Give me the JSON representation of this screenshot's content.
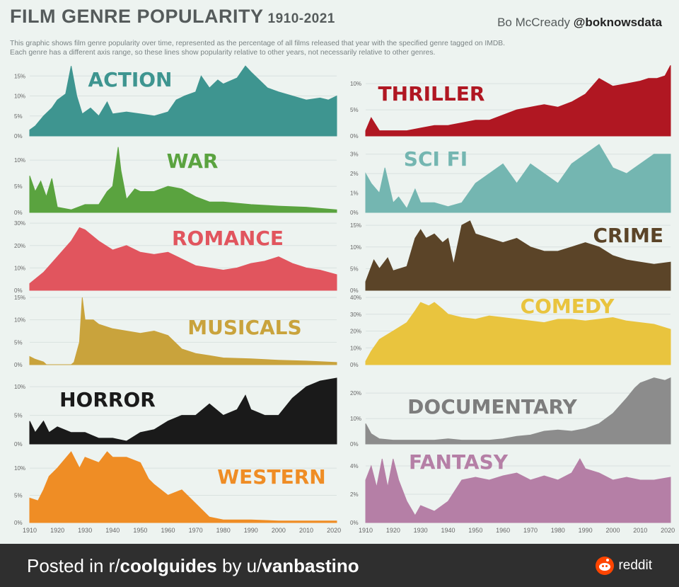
{
  "title": "FILM GENRE POPULARITY",
  "title_years": "1910-2021",
  "author": "Bo McCready",
  "author_handle": "@boknowsdata",
  "subtitle_line1": "This graphic shows film genre popularity over time, represented as the percentage of all films released that year with the specified genre tagged on IMDB.",
  "subtitle_line2": "Each genre has a different axis range, so these lines show popularity relative to other years, not necessarily relative to other genres.",
  "footer": {
    "prefix": "Posted in r/",
    "subreddit": "coolguides",
    "by": " by u/",
    "user": "vanbastino",
    "brand": "reddit"
  },
  "chart_data": [
    {
      "type": "area",
      "title": "ACTION",
      "color": "#3e9590",
      "label_color": "#3e9590",
      "ylim": [
        0,
        17
      ],
      "y_ticks": [
        "0%",
        "5%",
        "10%",
        "15%"
      ],
      "y_tick_values": [
        0,
        5,
        10,
        15
      ],
      "x": [
        1910,
        1912,
        1915,
        1918,
        1920,
        1923,
        1925,
        1927,
        1929,
        1932,
        1935,
        1938,
        1940,
        1945,
        1950,
        1955,
        1960,
        1963,
        1966,
        1970,
        1972,
        1975,
        1978,
        1980,
        1985,
        1988,
        1990,
        1993,
        1996,
        2000,
        2005,
        2010,
        2015,
        2018,
        2021
      ],
      "values": [
        1.5,
        2.5,
        5.0,
        7.0,
        9.0,
        10.5,
        17.5,
        10.0,
        5.5,
        7.0,
        5.0,
        8.5,
        5.5,
        6.0,
        5.5,
        5.0,
        6.0,
        9.0,
        10.0,
        11.0,
        15.0,
        12.0,
        14.0,
        13.0,
        14.5,
        17.5,
        16.0,
        14.0,
        12.0,
        11.0,
        10.0,
        9.0,
        9.5,
        9.0,
        10.0
      ]
    },
    {
      "type": "area",
      "title": "THRILLER",
      "color": "#b01722",
      "label_color": "#b01722",
      "ylim": [
        0,
        13
      ],
      "y_ticks": [
        "0%",
        "5%",
        "10%"
      ],
      "y_tick_values": [
        0,
        5,
        10
      ],
      "x": [
        1910,
        1912,
        1915,
        1920,
        1925,
        1930,
        1935,
        1940,
        1945,
        1950,
        1955,
        1960,
        1965,
        1970,
        1975,
        1980,
        1985,
        1990,
        1995,
        2000,
        2005,
        2010,
        2013,
        2016,
        2019,
        2021
      ],
      "values": [
        1.0,
        3.5,
        1.0,
        1.0,
        1.0,
        1.5,
        2.0,
        2.0,
        2.5,
        3.0,
        3.0,
        4.0,
        5.0,
        5.5,
        6.0,
        5.5,
        6.5,
        8.0,
        11.0,
        9.5,
        10.0,
        10.5,
        11.0,
        11.0,
        11.5,
        13.5
      ]
    },
    {
      "type": "area",
      "title": "WAR",
      "color": "#5aa33f",
      "label_color": "#5aa33f",
      "ylim": [
        0,
        13
      ],
      "y_ticks": [
        "0%",
        "5%",
        "10%"
      ],
      "y_tick_values": [
        0,
        5,
        10
      ],
      "x": [
        1910,
        1912,
        1914,
        1916,
        1918,
        1920,
        1925,
        1930,
        1935,
        1938,
        1940,
        1942,
        1943,
        1945,
        1948,
        1950,
        1955,
        1960,
        1965,
        1970,
        1975,
        1980,
        1990,
        2000,
        2010,
        2021
      ],
      "values": [
        7.0,
        4.0,
        6.0,
        3.0,
        6.5,
        1.0,
        0.5,
        1.5,
        1.5,
        4.0,
        5.0,
        12.5,
        8.0,
        2.5,
        4.5,
        4.0,
        4.0,
        5.0,
        4.5,
        3.0,
        2.0,
        2.0,
        1.5,
        1.2,
        1.0,
        0.5
      ]
    },
    {
      "type": "area",
      "title": "SCI FI",
      "color": "#74b6b1",
      "label_color": "#74b6b1",
      "ylim": [
        0,
        3.5
      ],
      "y_ticks": [
        "0%",
        "1%",
        "2%",
        "3%"
      ],
      "y_tick_values": [
        0,
        1,
        2,
        3
      ],
      "x": [
        1910,
        1912,
        1915,
        1917,
        1920,
        1922,
        1925,
        1928,
        1930,
        1935,
        1940,
        1945,
        1950,
        1955,
        1960,
        1965,
        1970,
        1975,
        1980,
        1985,
        1990,
        1995,
        2000,
        2005,
        2010,
        2015,
        2021
      ],
      "values": [
        2.0,
        1.5,
        1.0,
        2.3,
        0.5,
        0.8,
        0.2,
        1.2,
        0.5,
        0.5,
        0.3,
        0.5,
        1.5,
        2.0,
        2.5,
        1.5,
        2.5,
        2.0,
        1.5,
        2.5,
        3.0,
        3.5,
        2.3,
        2.0,
        2.5,
        3.0,
        3.0
      ]
    },
    {
      "type": "area",
      "title": "ROMANCE",
      "color": "#e1555e",
      "label_color": "#e1555e",
      "ylim": [
        0,
        31
      ],
      "y_ticks": [
        "0%",
        "10%",
        "20%",
        "30%"
      ],
      "y_tick_values": [
        0,
        10,
        20,
        30
      ],
      "x": [
        1910,
        1915,
        1920,
        1925,
        1928,
        1930,
        1935,
        1940,
        1945,
        1950,
        1955,
        1960,
        1965,
        1970,
        1975,
        1980,
        1985,
        1990,
        1995,
        2000,
        2005,
        2010,
        2015,
        2021
      ],
      "values": [
        3.0,
        8.0,
        15.0,
        22.0,
        28.0,
        27.0,
        22.0,
        18.0,
        20.0,
        17.0,
        16.0,
        17.0,
        14.0,
        11.0,
        10.0,
        9.0,
        10.0,
        12.0,
        13.0,
        15.0,
        12.0,
        10.0,
        9.0,
        7.0
      ]
    },
    {
      "type": "area",
      "title": "CRIME",
      "color": "#5b4428",
      "label_color": "#5b4428",
      "ylim": [
        0,
        16
      ],
      "y_ticks": [
        "0%",
        "5%",
        "10%",
        "15%"
      ],
      "y_tick_values": [
        0,
        5,
        10,
        15
      ],
      "x": [
        1910,
        1913,
        1915,
        1918,
        1920,
        1925,
        1928,
        1930,
        1932,
        1935,
        1938,
        1940,
        1942,
        1945,
        1948,
        1950,
        1955,
        1960,
        1965,
        1970,
        1975,
        1980,
        1985,
        1990,
        1995,
        2000,
        2005,
        2010,
        2015,
        2021
      ],
      "values": [
        2.0,
        7.0,
        5.0,
        7.5,
        4.5,
        5.5,
        12.0,
        14.0,
        12.0,
        13.0,
        11.0,
        12.0,
        6.0,
        15.0,
        16.0,
        13.0,
        12.0,
        11.0,
        12.0,
        10.0,
        9.0,
        9.0,
        10.0,
        11.0,
        10.0,
        8.0,
        7.0,
        6.5,
        6.0,
        6.5
      ]
    },
    {
      "type": "area",
      "title": "MUSICALS",
      "color": "#c9a33c",
      "label_color": "#c9a33c",
      "ylim": [
        0,
        15
      ],
      "y_ticks": [
        "0%",
        "5%",
        "10%",
        "15%"
      ],
      "y_tick_values": [
        0,
        5,
        10,
        15
      ],
      "x": [
        1910,
        1912,
        1915,
        1916,
        1917,
        1924,
        1925,
        1926,
        1928,
        1929,
        1930,
        1933,
        1935,
        1940,
        1945,
        1950,
        1955,
        1960,
        1965,
        1970,
        1975,
        1980,
        1990,
        2000,
        2010,
        2021
      ],
      "values": [
        1.8,
        1.2,
        0.6,
        0,
        0,
        0,
        0,
        0.5,
        5.0,
        15.0,
        10.0,
        10.0,
        9.0,
        8.0,
        7.5,
        7.0,
        7.5,
        6.5,
        3.5,
        2.5,
        2.0,
        1.5,
        1.3,
        1.0,
        0.8,
        0.5
      ]
    },
    {
      "type": "area",
      "title": "COMEDY",
      "color": "#e9c43e",
      "label_color": "#e9c43e",
      "ylim": [
        0,
        40
      ],
      "y_ticks": [
        "0%",
        "10%",
        "20%",
        "30%",
        "40%"
      ],
      "y_tick_values": [
        0,
        10,
        20,
        30,
        40
      ],
      "x": [
        1910,
        1912,
        1915,
        1920,
        1925,
        1928,
        1930,
        1933,
        1935,
        1938,
        1940,
        1945,
        1950,
        1955,
        1960,
        1965,
        1970,
        1975,
        1980,
        1985,
        1990,
        1995,
        2000,
        2005,
        2010,
        2015,
        2021
      ],
      "values": [
        2.0,
        8.0,
        15.0,
        20.0,
        25.0,
        32.0,
        37.0,
        35.0,
        37.0,
        33.0,
        30.0,
        28.0,
        27.0,
        29.0,
        28.0,
        27.0,
        26.0,
        25.0,
        27.0,
        27.0,
        26.0,
        27.0,
        28.0,
        26.0,
        25.0,
        24.0,
        21.0
      ]
    },
    {
      "type": "area",
      "title": "HORROR",
      "color": "#1a1a1a",
      "label_color": "#1a1a1a",
      "ylim": [
        0,
        12
      ],
      "y_ticks": [
        "0%",
        "5%",
        "10%"
      ],
      "y_tick_values": [
        0,
        5,
        10
      ],
      "x": [
        1910,
        1912,
        1915,
        1917,
        1920,
        1925,
        1930,
        1935,
        1940,
        1945,
        1950,
        1955,
        1960,
        1965,
        1970,
        1975,
        1980,
        1985,
        1988,
        1990,
        1995,
        2000,
        2005,
        2010,
        2015,
        2021
      ],
      "values": [
        4.0,
        2.0,
        4.0,
        2.0,
        3.0,
        2.0,
        2.0,
        1.0,
        1.0,
        0.5,
        2.0,
        2.5,
        4.0,
        5.0,
        5.0,
        7.0,
        5.0,
        6.0,
        8.5,
        6.0,
        5.0,
        5.0,
        8.0,
        10.0,
        11.0,
        11.5
      ]
    },
    {
      "type": "area",
      "title": "DOCUMENTARY",
      "color": "#8c8c8c",
      "label_color": "#7d7d7d",
      "ylim": [
        0,
        27
      ],
      "y_ticks": [
        "0%",
        "10%",
        "20%"
      ],
      "y_tick_values": [
        0,
        10,
        20
      ],
      "x": [
        1910,
        1912,
        1915,
        1920,
        1925,
        1930,
        1935,
        1940,
        1945,
        1950,
        1955,
        1960,
        1965,
        1970,
        1975,
        1980,
        1985,
        1990,
        1995,
        2000,
        2005,
        2008,
        2010,
        2015,
        2019,
        2021
      ],
      "values": [
        8.0,
        4.0,
        2.0,
        1.5,
        1.5,
        1.5,
        1.5,
        2.0,
        1.5,
        1.5,
        1.5,
        2.0,
        3.0,
        3.5,
        5.0,
        5.5,
        5.0,
        6.0,
        8.0,
        12.0,
        18.0,
        22.0,
        24.0,
        26.0,
        25.0,
        26.0
      ]
    },
    {
      "type": "area",
      "title": "WESTERN",
      "color": "#ef8d25",
      "label_color": "#ef8d25",
      "ylim": [
        0,
        13
      ],
      "y_ticks": [
        "0%",
        "5%",
        "10%"
      ],
      "y_tick_values": [
        0,
        5,
        10
      ],
      "x": [
        1910,
        1913,
        1915,
        1917,
        1920,
        1925,
        1928,
        1930,
        1935,
        1938,
        1940,
        1945,
        1950,
        1953,
        1955,
        1960,
        1965,
        1970,
        1975,
        1980,
        1985,
        1990,
        2000,
        2010,
        2021
      ],
      "values": [
        4.5,
        4.0,
        6.0,
        8.5,
        10.0,
        13.0,
        10.0,
        12.0,
        11.0,
        13.0,
        12.0,
        12.0,
        11.0,
        8.0,
        7.0,
        5.0,
        6.0,
        3.5,
        1.0,
        0.5,
        0.5,
        0.5,
        0.3,
        0.3,
        0.3
      ]
    },
    {
      "type": "area",
      "title": "FANTASY",
      "color": "#b57fa6",
      "label_color": "#b57fa6",
      "ylim": [
        0,
        5
      ],
      "y_ticks": [
        "0%",
        "2%",
        "4%"
      ],
      "y_tick_values": [
        0,
        2,
        4
      ],
      "x": [
        1910,
        1912,
        1914,
        1916,
        1918,
        1920,
        1922,
        1925,
        1928,
        1930,
        1935,
        1940,
        1945,
        1950,
        1955,
        1960,
        1965,
        1970,
        1975,
        1980,
        1985,
        1988,
        1990,
        1995,
        2000,
        2005,
        2010,
        2015,
        2021
      ],
      "values": [
        3.0,
        4.0,
        2.5,
        4.5,
        2.5,
        4.5,
        3.0,
        1.5,
        0.5,
        1.2,
        0.8,
        1.5,
        3.0,
        3.2,
        3.0,
        3.3,
        3.5,
        3.0,
        3.3,
        3.0,
        3.5,
        4.5,
        3.8,
        3.5,
        3.0,
        3.2,
        3.0,
        3.0,
        3.2
      ]
    }
  ],
  "x_axis": {
    "ticks": [
      1910,
      1920,
      1930,
      1940,
      1950,
      1960,
      1970,
      1980,
      1990,
      2000,
      2010,
      2020
    ],
    "range": [
      1905,
      2023
    ]
  }
}
